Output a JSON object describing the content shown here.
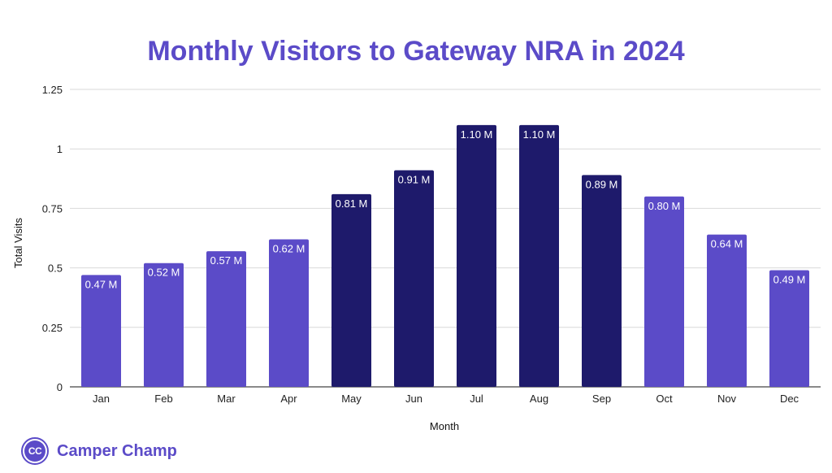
{
  "chart_data": {
    "type": "bar",
    "title": "Monthly Visitors to Gateway NRA in 2024",
    "xlabel": "Month",
    "ylabel": "Total Visits",
    "categories": [
      "Jan",
      "Feb",
      "Mar",
      "Apr",
      "May",
      "Jun",
      "Jul",
      "Aug",
      "Sep",
      "Oct",
      "Nov",
      "Dec"
    ],
    "values": [
      0.47,
      0.52,
      0.57,
      0.62,
      0.81,
      0.91,
      1.1,
      1.1,
      0.89,
      0.8,
      0.64,
      0.49
    ],
    "data_labels": [
      "0.47 M",
      "0.52 M",
      "0.57 M",
      "0.62 M",
      "0.81 M",
      "0.91 M",
      "1.10 M",
      "1.10 M",
      "0.89 M",
      "0.80 M",
      "0.64 M",
      "0.49 M"
    ],
    "bar_colors": [
      "#5b4bc8",
      "#5b4bc8",
      "#5b4bc8",
      "#5b4bc8",
      "#1e1a6b",
      "#1e1a6b",
      "#1e1a6b",
      "#1e1a6b",
      "#1e1a6b",
      "#5b4bc8",
      "#5b4bc8",
      "#5b4bc8"
    ],
    "ylim": [
      0,
      1.25
    ],
    "yticks": [
      0,
      0.25,
      0.5,
      0.75,
      1,
      1.25
    ],
    "ytick_labels": [
      "0",
      "0.25",
      "0.5",
      "0.75",
      "1",
      "1.25"
    ],
    "grid": true,
    "legend": "none"
  },
  "branding": {
    "logo_initials": "CC",
    "logo_text": "Camper Champ",
    "brand_color": "#5b4bc8"
  },
  "colors": {
    "title": "#5b4bc8",
    "grid": "#d9d9d9",
    "axis": "#444444"
  }
}
